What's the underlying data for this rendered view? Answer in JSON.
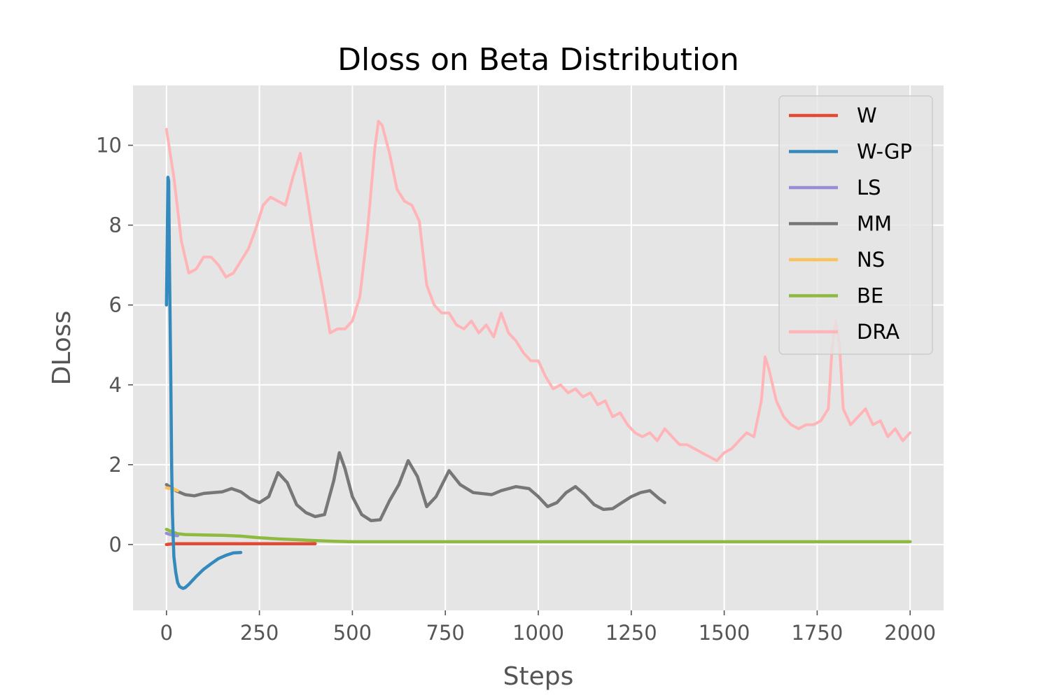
{
  "chart_data": {
    "type": "line",
    "title": "Dloss on Beta Distribution",
    "xlabel": "Steps",
    "ylabel": "DLoss",
    "xlim": [
      -90,
      2090
    ],
    "ylim": [
      -1.65,
      11.5
    ],
    "xticks": [
      0,
      250,
      500,
      750,
      1000,
      1250,
      1500,
      1750,
      2000
    ],
    "yticks": [
      0,
      2,
      4,
      6,
      8,
      10
    ],
    "grid": true,
    "legend_position": "top-right",
    "background_color": "#e5e5e5",
    "series": [
      {
        "name": "W",
        "color": "#e24a33",
        "x": [
          0,
          20,
          50,
          100,
          200,
          300,
          400
        ],
        "y": [
          0.0,
          0.02,
          0.02,
          0.02,
          0.02,
          0.02,
          0.02
        ]
      },
      {
        "name": "W-GP",
        "color": "#348abd",
        "x": [
          0,
          2,
          4,
          6,
          8,
          10,
          12,
          14,
          16,
          18,
          20,
          25,
          30,
          35,
          40,
          45,
          50,
          60,
          70,
          80,
          100,
          120,
          140,
          160,
          180,
          200
        ],
        "y": [
          6.0,
          7.5,
          9.2,
          9.1,
          7.0,
          5.5,
          3.8,
          2.0,
          0.8,
          0.2,
          -0.3,
          -0.7,
          -0.95,
          -1.05,
          -1.08,
          -1.1,
          -1.08,
          -1.0,
          -0.9,
          -0.8,
          -0.62,
          -0.48,
          -0.35,
          -0.27,
          -0.21,
          -0.2
        ]
      },
      {
        "name": "LS",
        "color": "#988ed5",
        "x": [
          0,
          10,
          20,
          30
        ],
        "y": [
          0.28,
          0.25,
          0.23,
          0.22
        ]
      },
      {
        "name": "MM",
        "color": "#777777",
        "x": [
          0,
          25,
          50,
          75,
          100,
          125,
          150,
          175,
          200,
          225,
          250,
          275,
          300,
          325,
          350,
          375,
          400,
          425,
          450,
          465,
          480,
          500,
          525,
          550,
          575,
          600,
          625,
          650,
          675,
          700,
          725,
          760,
          790,
          825,
          875,
          900,
          940,
          975,
          1000,
          1025,
          1050,
          1075,
          1100,
          1125,
          1150,
          1175,
          1200,
          1225,
          1250,
          1275,
          1300,
          1325,
          1340
        ],
        "y": [
          1.5,
          1.35,
          1.25,
          1.22,
          1.28,
          1.3,
          1.32,
          1.4,
          1.32,
          1.15,
          1.05,
          1.2,
          1.8,
          1.55,
          1.0,
          0.8,
          0.7,
          0.75,
          1.6,
          2.3,
          1.9,
          1.2,
          0.75,
          0.6,
          0.62,
          1.1,
          1.5,
          2.1,
          1.7,
          0.95,
          1.2,
          1.85,
          1.5,
          1.3,
          1.25,
          1.35,
          1.45,
          1.4,
          1.2,
          0.95,
          1.05,
          1.3,
          1.45,
          1.25,
          1.0,
          0.88,
          0.9,
          1.05,
          1.2,
          1.3,
          1.35,
          1.15,
          1.05
        ]
      },
      {
        "name": "NS",
        "color": "#fbc15e",
        "x": [
          0,
          10,
          20,
          30
        ],
        "y": [
          1.42,
          1.4,
          1.38,
          1.35
        ]
      },
      {
        "name": "BE",
        "color": "#8eba42",
        "x": [
          0,
          10,
          20,
          30,
          50,
          100,
          150,
          200,
          250,
          300,
          350,
          400,
          450,
          500,
          600,
          800,
          1000,
          1200,
          1400,
          1600,
          1800,
          2000
        ],
        "y": [
          0.38,
          0.34,
          0.3,
          0.27,
          0.25,
          0.24,
          0.23,
          0.21,
          0.17,
          0.14,
          0.12,
          0.1,
          0.08,
          0.07,
          0.07,
          0.07,
          0.07,
          0.07,
          0.07,
          0.07,
          0.07,
          0.07
        ]
      },
      {
        "name": "DRA",
        "color": "#ffb5b8",
        "x": [
          0,
          20,
          40,
          60,
          80,
          100,
          120,
          140,
          160,
          180,
          200,
          220,
          240,
          260,
          280,
          300,
          320,
          340,
          360,
          380,
          400,
          420,
          440,
          460,
          480,
          500,
          520,
          540,
          560,
          570,
          580,
          600,
          620,
          640,
          660,
          680,
          700,
          720,
          740,
          760,
          780,
          800,
          820,
          840,
          860,
          880,
          900,
          920,
          940,
          960,
          980,
          1000,
          1020,
          1040,
          1060,
          1080,
          1100,
          1120,
          1140,
          1160,
          1180,
          1200,
          1220,
          1240,
          1260,
          1280,
          1300,
          1320,
          1340,
          1360,
          1380,
          1400,
          1420,
          1440,
          1460,
          1480,
          1500,
          1520,
          1540,
          1560,
          1580,
          1600,
          1610,
          1620,
          1640,
          1660,
          1680,
          1700,
          1720,
          1740,
          1760,
          1780,
          1790,
          1800,
          1810,
          1820,
          1840,
          1860,
          1880,
          1900,
          1920,
          1940,
          1960,
          1980,
          2000
        ],
        "y": [
          10.4,
          9.2,
          7.6,
          6.8,
          6.9,
          7.2,
          7.2,
          7.0,
          6.7,
          6.8,
          7.1,
          7.4,
          7.9,
          8.5,
          8.7,
          8.6,
          8.5,
          9.2,
          9.8,
          8.6,
          7.4,
          6.4,
          5.3,
          5.4,
          5.4,
          5.6,
          6.2,
          7.8,
          9.9,
          10.6,
          10.5,
          9.8,
          8.9,
          8.6,
          8.5,
          8.1,
          6.5,
          6.0,
          5.8,
          5.8,
          5.5,
          5.4,
          5.6,
          5.3,
          5.5,
          5.2,
          5.8,
          5.3,
          5.1,
          4.8,
          4.6,
          4.6,
          4.2,
          3.9,
          4.0,
          3.8,
          3.9,
          3.7,
          3.8,
          3.5,
          3.6,
          3.2,
          3.3,
          3.0,
          2.8,
          2.7,
          2.8,
          2.6,
          2.9,
          2.7,
          2.5,
          2.5,
          2.4,
          2.3,
          2.2,
          2.1,
          2.3,
          2.4,
          2.6,
          2.8,
          2.7,
          3.6,
          4.7,
          4.4,
          3.6,
          3.2,
          3.0,
          2.9,
          3.0,
          3.0,
          3.1,
          3.4,
          4.9,
          5.6,
          5.0,
          3.4,
          3.0,
          3.2,
          3.4,
          3.0,
          3.1,
          2.7,
          2.9,
          2.6,
          2.8
        ]
      }
    ]
  }
}
